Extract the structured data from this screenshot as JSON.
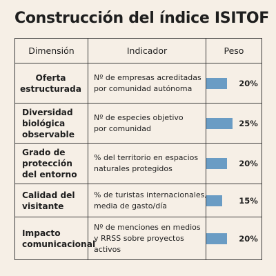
{
  "title": "Construcción del índice ISITOF",
  "table": {
    "headers": {
      "dimension": "Dimensión",
      "indicator": "Indicador",
      "weight": "Peso"
    },
    "accent_color": "#6a9cc4",
    "rows": [
      {
        "dimension": [
          "Oferta",
          "estructurada"
        ],
        "indicator": [
          "Nº de empresas acreditadas",
          "por comunidad autónoma"
        ],
        "weight_label": "20%",
        "weight": 20
      },
      {
        "dimension": [
          "Diversidad",
          "biológica",
          "observable"
        ],
        "indicator": [
          "Nº de especies objetivo",
          "por comunidad"
        ],
        "weight_label": "25%",
        "weight": 25
      },
      {
        "dimension": [
          "Grado de",
          "protección",
          "del entorno"
        ],
        "indicator": [
          "% del territorio en espacios",
          "naturales protegidos"
        ],
        "weight_label": "20%",
        "weight": 20
      },
      {
        "dimension": [
          "Calidad del",
          "visitante"
        ],
        "indicator": [
          "% de turistas internacionales,",
          "media de gasto/día"
        ],
        "weight_label": "15%",
        "weight": 15
      },
      {
        "dimension": [
          "Impacto",
          "comunicacional"
        ],
        "indicator": [
          "Nº de menciones en medios",
          "y RRSS sobre proyectos",
          "activos"
        ],
        "weight_label": "20%",
        "weight": 20
      }
    ]
  }
}
